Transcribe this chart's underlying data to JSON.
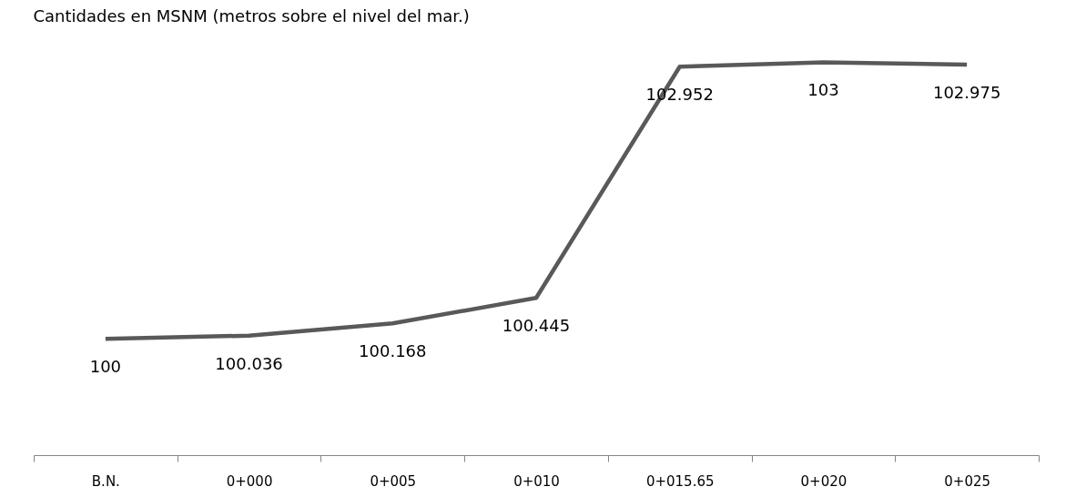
{
  "chart_data": {
    "type": "line",
    "title": "Cantidades en MSNM (metros sobre el nivel del mar.)",
    "categories": [
      "B.N.",
      "0+000",
      "0+005",
      "0+010",
      "0+015.65",
      "0+020",
      "0+025"
    ],
    "series": [
      {
        "color": "#595959",
        "values": [
          100,
          100.036,
          100.168,
          100.445,
          102.952,
          103,
          102.975
        ]
      }
    ],
    "data_labels": true,
    "tick_labels": "x",
    "grid": false,
    "legend": false,
    "marker": "none",
    "line_style": "solid"
  }
}
